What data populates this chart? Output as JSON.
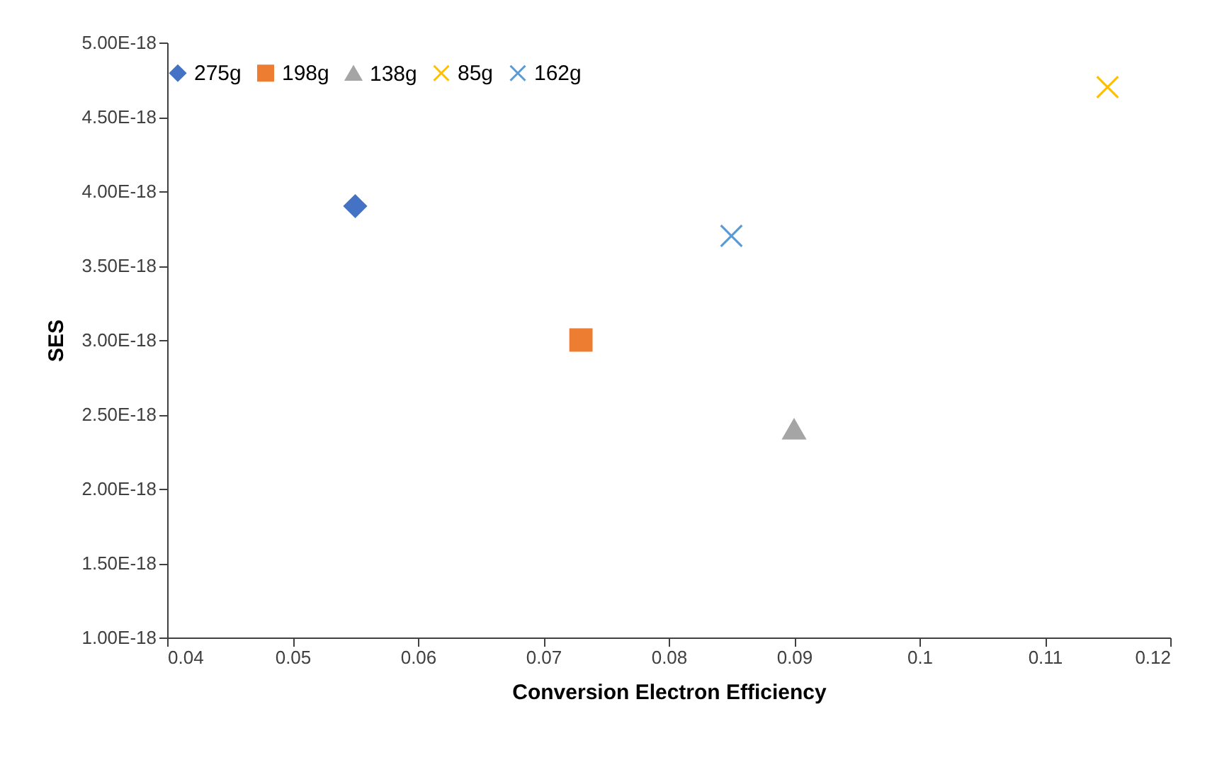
{
  "chart_data": {
    "type": "scatter",
    "xlabel": "Conversion Electron Efficiency",
    "ylabel": "SES",
    "xlim": [
      0.04,
      0.12
    ],
    "xticks": [
      0.04,
      0.05,
      0.06,
      0.07,
      0.08,
      0.09,
      0.1,
      0.11,
      0.12
    ],
    "ylim": [
      1e-18,
      5e-18
    ],
    "yticks": [
      {
        "value": 1e-18,
        "label": "1.00E-18"
      },
      {
        "value": 1.5e-18,
        "label": "1.50E-18"
      },
      {
        "value": 2e-18,
        "label": "2.00E-18"
      },
      {
        "value": 2.5e-18,
        "label": "2.50E-18"
      },
      {
        "value": 3e-18,
        "label": "3.00E-18"
      },
      {
        "value": 3.5e-18,
        "label": "3.50E-18"
      },
      {
        "value": 4e-18,
        "label": "4.00E-18"
      },
      {
        "value": 4.5e-18,
        "label": "4.50E-18"
      },
      {
        "value": 5e-18,
        "label": "5.00E-18"
      }
    ],
    "legend": "top",
    "series": [
      {
        "name": "275g",
        "color": "#4472c4",
        "marker": "diamond",
        "x": [
          0.055
        ],
        "values": [
          3.9e-18
        ]
      },
      {
        "name": "198g",
        "color": "#ed7d31",
        "marker": "square",
        "x": [
          0.073
        ],
        "values": [
          3e-18
        ]
      },
      {
        "name": "138g",
        "color": "#a5a5a5",
        "marker": "triangle",
        "x": [
          0.09
        ],
        "values": [
          2.4e-18
        ]
      },
      {
        "name": "85g",
        "color": "#ffc000",
        "marker": "cross",
        "x": [
          0.115
        ],
        "values": [
          4.7e-18
        ]
      },
      {
        "name": "162g",
        "color": "#5b9bd5",
        "marker": "cross",
        "x": [
          0.085
        ],
        "values": [
          3.7e-18
        ]
      }
    ]
  }
}
